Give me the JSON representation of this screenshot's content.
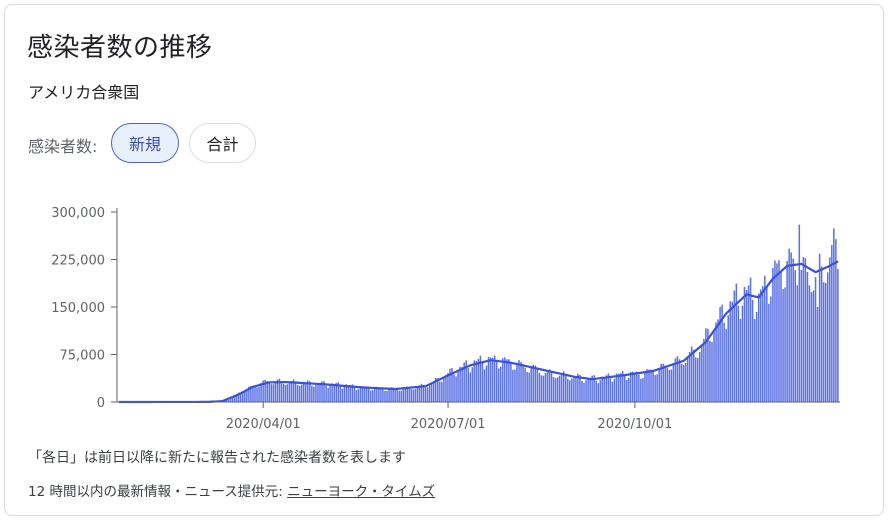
{
  "title": "感染者数の推移",
  "location": "アメリカ合衆国",
  "filter": {
    "label": "感染者数:",
    "chips": [
      "新規",
      "合計"
    ],
    "selected": "新規"
  },
  "footer": {
    "note": "「各日」は前日以降に新たに報告された感染者数を表します",
    "source_prefix": "12 時間以内の最新情報・ニュース提供元: ",
    "source_link": "ニューヨーク・タイムズ"
  },
  "colors": {
    "bars": "#5b72e6",
    "line": "#3b51d6",
    "axis": "#5f6368"
  },
  "chart_data": {
    "type": "bar",
    "ylim": [
      0,
      300000
    ],
    "y_ticks": [
      0,
      75000,
      150000,
      225000,
      300000
    ],
    "y_tick_labels": [
      "0",
      "75,000",
      "150,000",
      "225,000",
      "300,000"
    ],
    "x_tick_labels": [
      "2020/04/01",
      "2020/07/01",
      "2020/10/01"
    ],
    "x_tick_dates": [
      "2020-04-01",
      "2020-07-01",
      "2020-10-01"
    ],
    "date_range": [
      "2020-01-21",
      "2021-01-09"
    ],
    "daily_new_cases_anchors": [
      [
        "2020-01-21",
        0
      ],
      [
        "2020-02-29",
        50
      ],
      [
        "2020-03-05",
        200
      ],
      [
        "2020-03-10",
        1200
      ],
      [
        "2020-03-15",
        4000
      ],
      [
        "2020-03-20",
        14000
      ],
      [
        "2020-03-25",
        22000
      ],
      [
        "2020-03-31",
        30000
      ],
      [
        "2020-04-04",
        33000
      ],
      [
        "2020-04-10",
        32000
      ],
      [
        "2020-04-20",
        30000
      ],
      [
        "2020-05-01",
        29000
      ],
      [
        "2020-05-10",
        27000
      ],
      [
        "2020-05-20",
        23000
      ],
      [
        "2020-06-01",
        21000
      ],
      [
        "2020-06-10",
        21000
      ],
      [
        "2020-06-20",
        26000
      ],
      [
        "2020-06-25",
        33000
      ],
      [
        "2020-07-01",
        45000
      ],
      [
        "2020-07-10",
        58000
      ],
      [
        "2020-07-18",
        66000
      ],
      [
        "2020-07-25",
        67000
      ],
      [
        "2020-08-01",
        63000
      ],
      [
        "2020-08-10",
        55000
      ],
      [
        "2020-08-20",
        45000
      ],
      [
        "2020-09-01",
        40000
      ],
      [
        "2020-09-07",
        37000
      ],
      [
        "2020-09-15",
        38000
      ],
      [
        "2020-09-25",
        44000
      ],
      [
        "2020-10-05",
        45000
      ],
      [
        "2020-10-15",
        55000
      ],
      [
        "2020-10-25",
        68000
      ],
      [
        "2020-11-01",
        82000
      ],
      [
        "2020-11-10",
        125000
      ],
      [
        "2020-11-20",
        165000
      ],
      [
        "2020-11-27",
        175000
      ],
      [
        "2020-12-01",
        160000
      ],
      [
        "2020-12-05",
        190000
      ],
      [
        "2020-12-12",
        215000
      ],
      [
        "2020-12-19",
        220000
      ],
      [
        "2020-12-25",
        200000
      ],
      [
        "2021-01-01",
        205000
      ],
      [
        "2021-01-05",
        235000
      ],
      [
        "2021-01-09",
        240000
      ]
    ],
    "moving_average_anchors": [
      [
        "2020-01-21",
        0
      ],
      [
        "2020-03-05",
        150
      ],
      [
        "2020-03-12",
        1500
      ],
      [
        "2020-03-20",
        12000
      ],
      [
        "2020-03-27",
        24000
      ],
      [
        "2020-04-04",
        31000
      ],
      [
        "2020-04-12",
        31500
      ],
      [
        "2020-05-01",
        28000
      ],
      [
        "2020-05-20",
        23000
      ],
      [
        "2020-06-05",
        20500
      ],
      [
        "2020-06-20",
        25000
      ],
      [
        "2020-07-01",
        42000
      ],
      [
        "2020-07-12",
        58000
      ],
      [
        "2020-07-22",
        66000
      ],
      [
        "2020-08-01",
        62000
      ],
      [
        "2020-08-15",
        52000
      ],
      [
        "2020-09-01",
        40000
      ],
      [
        "2020-09-10",
        36000
      ],
      [
        "2020-09-25",
        42000
      ],
      [
        "2020-10-10",
        49000
      ],
      [
        "2020-10-25",
        65000
      ],
      [
        "2020-11-05",
        95000
      ],
      [
        "2020-11-15",
        140000
      ],
      [
        "2020-11-25",
        170000
      ],
      [
        "2020-12-01",
        165000
      ],
      [
        "2020-12-08",
        195000
      ],
      [
        "2020-12-15",
        215000
      ],
      [
        "2020-12-22",
        218000
      ],
      [
        "2020-12-29",
        205000
      ],
      [
        "2021-01-05",
        215000
      ],
      [
        "2021-01-09",
        222000
      ]
    ]
  }
}
